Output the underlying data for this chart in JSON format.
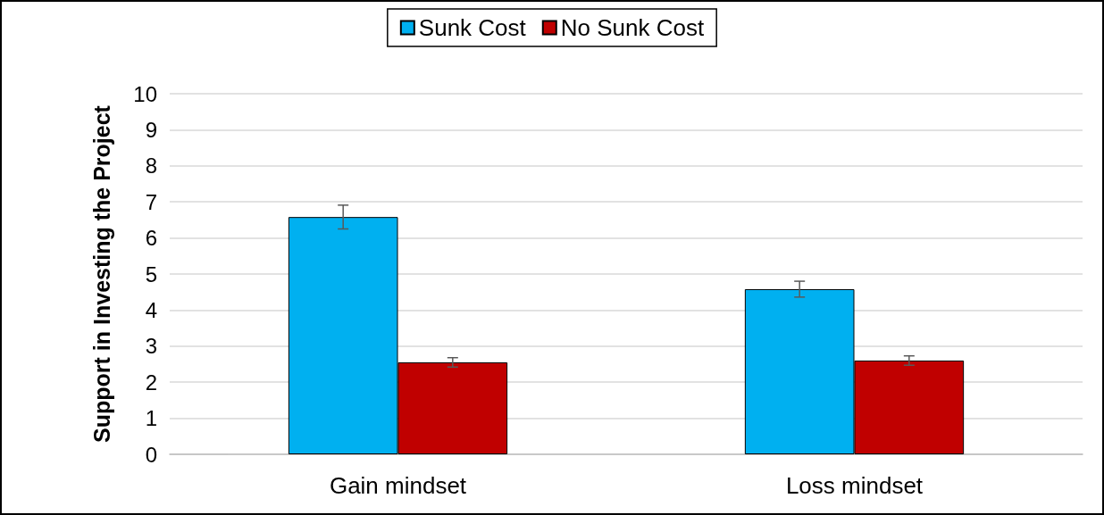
{
  "chart_data": {
    "type": "bar",
    "ylabel": "Support in Investing the Project",
    "categories": [
      "Gain mindset",
      "Loss mindset"
    ],
    "series": [
      {
        "name": "Sunk Cost",
        "color": "#00b0f0",
        "values": [
          6.58,
          4.58
        ],
        "errors": [
          0.33,
          0.22
        ]
      },
      {
        "name": "No Sunk Cost",
        "color": "#c00000",
        "values": [
          2.55,
          2.6
        ],
        "errors": [
          0.13,
          0.13
        ]
      }
    ],
    "ylim": [
      0,
      10
    ],
    "yticks": [
      0,
      1,
      2,
      3,
      4,
      5,
      6,
      7,
      8,
      9,
      10
    ],
    "grid": "y",
    "legend": "top"
  }
}
